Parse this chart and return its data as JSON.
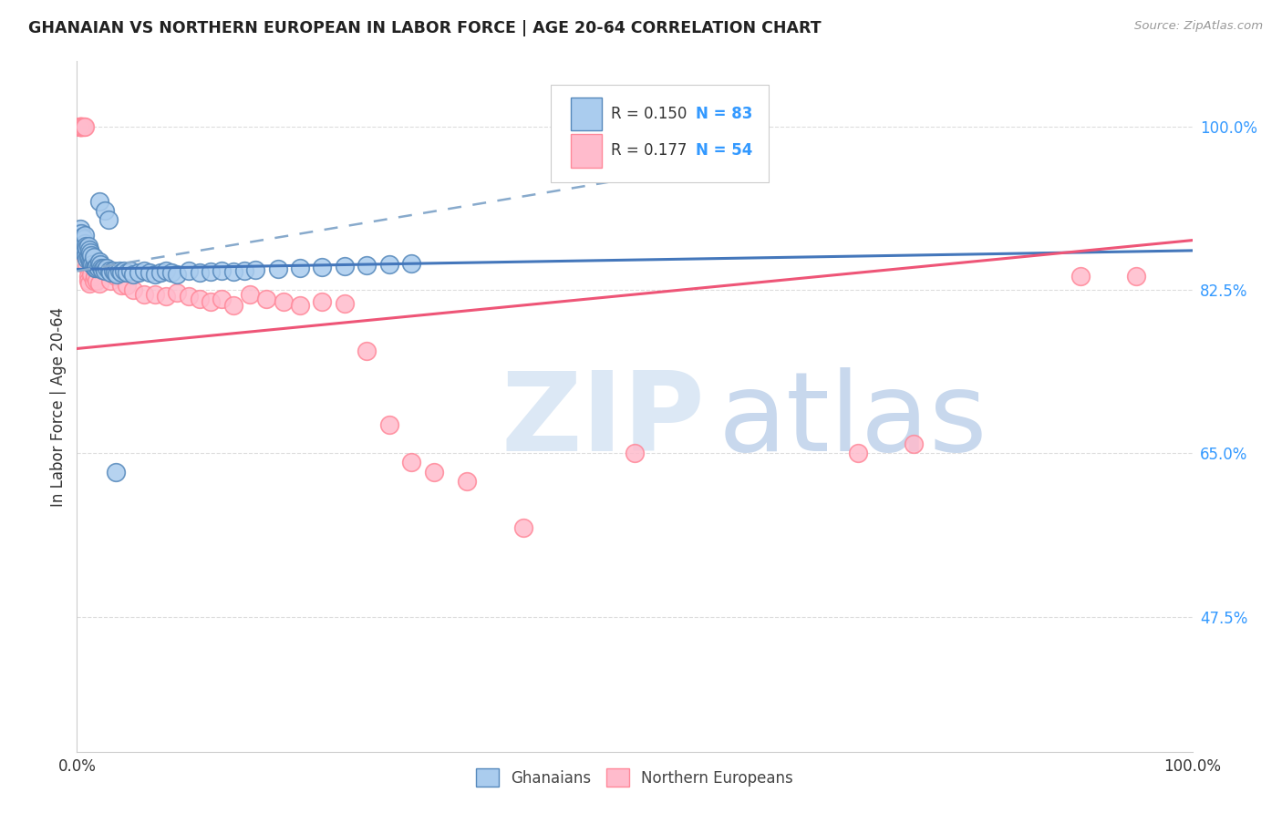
{
  "title": "GHANAIAN VS NORTHERN EUROPEAN IN LABOR FORCE | AGE 20-64 CORRELATION CHART",
  "source": "Source: ZipAtlas.com",
  "ylabel": "In Labor Force | Age 20-64",
  "y_tick_values": [
    0.475,
    0.65,
    0.825,
    1.0
  ],
  "y_tick_labels": [
    "47.5%",
    "65.0%",
    "82.5%",
    "100.0%"
  ],
  "xlim": [
    0.0,
    1.0
  ],
  "ylim": [
    0.33,
    1.07
  ],
  "legend_r1": "R = 0.150",
  "legend_n1": "N = 83",
  "legend_r2": "R = 0.177",
  "legend_n2": "N = 54",
  "color_blue_face": "#AACCEE",
  "color_blue_edge": "#5588BB",
  "color_pink_face": "#FFBBCC",
  "color_pink_edge": "#FF8899",
  "color_blue_line": "#4477BB",
  "color_pink_line": "#EE5577",
  "color_dashed": "#88AACC",
  "color_text_blue": "#3399FF",
  "color_grid": "#DDDDDD",
  "bg_color": "#FFFFFF",
  "ghana_x": [
    0.001,
    0.002,
    0.002,
    0.002,
    0.003,
    0.003,
    0.003,
    0.003,
    0.004,
    0.004,
    0.004,
    0.005,
    0.005,
    0.005,
    0.006,
    0.006,
    0.006,
    0.007,
    0.007,
    0.007,
    0.008,
    0.008,
    0.009,
    0.009,
    0.01,
    0.01,
    0.011,
    0.011,
    0.012,
    0.012,
    0.013,
    0.013,
    0.014,
    0.015,
    0.015,
    0.016,
    0.017,
    0.018,
    0.019,
    0.02,
    0.021,
    0.022,
    0.023,
    0.024,
    0.025,
    0.027,
    0.029,
    0.03,
    0.032,
    0.034,
    0.036,
    0.038,
    0.04,
    0.042,
    0.045,
    0.048,
    0.05,
    0.055,
    0.06,
    0.065,
    0.07,
    0.075,
    0.08,
    0.085,
    0.09,
    0.1,
    0.11,
    0.12,
    0.13,
    0.14,
    0.15,
    0.16,
    0.18,
    0.2,
    0.22,
    0.24,
    0.26,
    0.28,
    0.3,
    0.02,
    0.025,
    0.028,
    0.035
  ],
  "ghana_y": [
    0.88,
    0.87,
    0.875,
    0.885,
    0.87,
    0.878,
    0.882,
    0.89,
    0.872,
    0.878,
    0.885,
    0.868,
    0.875,
    0.882,
    0.865,
    0.872,
    0.88,
    0.868,
    0.875,
    0.883,
    0.862,
    0.872,
    0.858,
    0.87,
    0.86,
    0.872,
    0.858,
    0.868,
    0.855,
    0.865,
    0.853,
    0.862,
    0.852,
    0.85,
    0.86,
    0.848,
    0.848,
    0.85,
    0.848,
    0.855,
    0.852,
    0.848,
    0.846,
    0.848,
    0.845,
    0.848,
    0.845,
    0.843,
    0.845,
    0.843,
    0.842,
    0.845,
    0.843,
    0.845,
    0.843,
    0.845,
    0.842,
    0.843,
    0.845,
    0.843,
    0.842,
    0.843,
    0.845,
    0.843,
    0.842,
    0.845,
    0.843,
    0.844,
    0.845,
    0.844,
    0.845,
    0.846,
    0.847,
    0.848,
    0.849,
    0.85,
    0.851,
    0.852,
    0.853,
    0.92,
    0.91,
    0.9,
    0.63
  ],
  "northern_x": [
    0.002,
    0.002,
    0.003,
    0.003,
    0.004,
    0.004,
    0.005,
    0.005,
    0.006,
    0.007,
    0.008,
    0.008,
    0.009,
    0.01,
    0.01,
    0.011,
    0.012,
    0.013,
    0.015,
    0.016,
    0.018,
    0.02,
    0.025,
    0.03,
    0.035,
    0.04,
    0.045,
    0.05,
    0.06,
    0.07,
    0.08,
    0.09,
    0.1,
    0.11,
    0.12,
    0.13,
    0.14,
    0.155,
    0.17,
    0.185,
    0.2,
    0.22,
    0.24,
    0.26,
    0.28,
    0.3,
    0.32,
    0.35,
    0.4,
    0.5,
    0.7,
    0.75,
    0.9,
    0.95
  ],
  "northern_y": [
    1.0,
    1.0,
    1.0,
    1.0,
    1.0,
    1.0,
    1.0,
    1.0,
    1.0,
    1.0,
    0.87,
    0.86,
    0.85,
    0.84,
    0.835,
    0.832,
    0.855,
    0.842,
    0.835,
    0.84,
    0.835,
    0.832,
    0.845,
    0.835,
    0.84,
    0.83,
    0.83,
    0.825,
    0.82,
    0.82,
    0.818,
    0.822,
    0.818,
    0.815,
    0.812,
    0.815,
    0.808,
    0.82,
    0.815,
    0.812,
    0.808,
    0.812,
    0.81,
    0.76,
    0.68,
    0.64,
    0.63,
    0.62,
    0.57,
    0.65,
    0.65,
    0.66,
    0.84,
    0.84
  ],
  "ghana_trend_x": [
    0.0,
    1.0
  ],
  "ghana_trend_y": [
    0.847,
    0.867
  ],
  "northern_trend_x": [
    0.0,
    1.0
  ],
  "northern_trend_y": [
    0.762,
    0.878
  ],
  "dashed_trend_x": [
    0.0,
    0.55
  ],
  "dashed_trend_y": [
    0.845,
    0.955
  ]
}
